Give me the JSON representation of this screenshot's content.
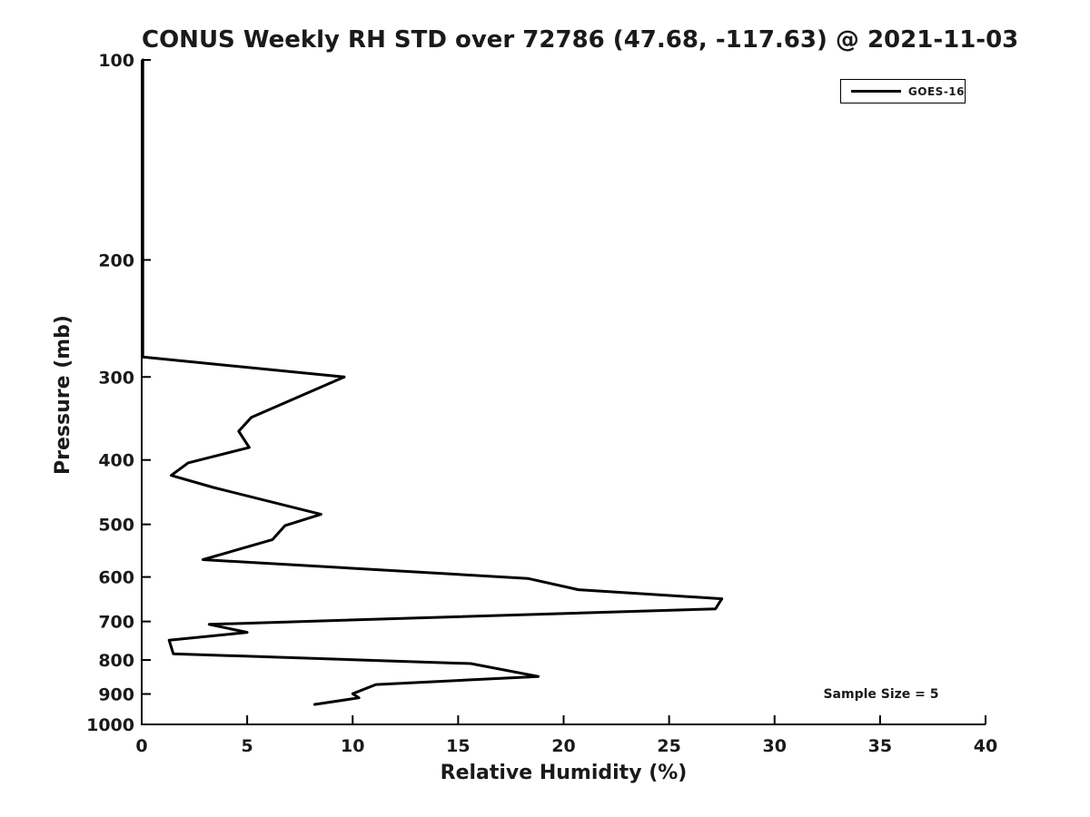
{
  "chart_data": {
    "type": "line",
    "title": "CONUS Weekly RH STD over 72786 (47.68, -117.63) @ 2021-11-03",
    "xlabel": "Relative Humidity (%)",
    "ylabel": "Pressure (mb)",
    "annotation": "Sample Size = 5",
    "xlim": [
      0,
      40
    ],
    "ylim": [
      100,
      1000
    ],
    "x_ticks": [
      0,
      5,
      10,
      15,
      20,
      25,
      30,
      35,
      40
    ],
    "y_ticks": [
      100,
      200,
      300,
      400,
      500,
      600,
      700,
      800,
      900,
      1000
    ],
    "y_scale": "log",
    "y_axis_inverted_pressure": true,
    "grid": false,
    "legend_position": "top-right",
    "axis_color": "#000000",
    "line_color": "#000000",
    "series": [
      {
        "name": "GOES-16",
        "points_rh_pressure": [
          [
            0.05,
            100
          ],
          [
            0.05,
            280
          ],
          [
            9.6,
            300
          ],
          [
            5.2,
            345
          ],
          [
            4.6,
            362
          ],
          [
            5.1,
            383
          ],
          [
            2.2,
            404
          ],
          [
            1.4,
            422
          ],
          [
            3.4,
            440
          ],
          [
            8.5,
            483
          ],
          [
            6.8,
            502
          ],
          [
            6.2,
            527
          ],
          [
            2.9,
            565
          ],
          [
            18.3,
            603
          ],
          [
            20.7,
            627
          ],
          [
            27.5,
            647
          ],
          [
            27.2,
            670
          ],
          [
            3.2,
            707
          ],
          [
            5.0,
            727
          ],
          [
            1.3,
            747
          ],
          [
            1.5,
            783
          ],
          [
            15.6,
            810
          ],
          [
            18.8,
            847
          ],
          [
            11.1,
            871
          ],
          [
            10.0,
            899
          ],
          [
            10.3,
            912
          ],
          [
            8.2,
            933
          ]
        ]
      }
    ]
  }
}
